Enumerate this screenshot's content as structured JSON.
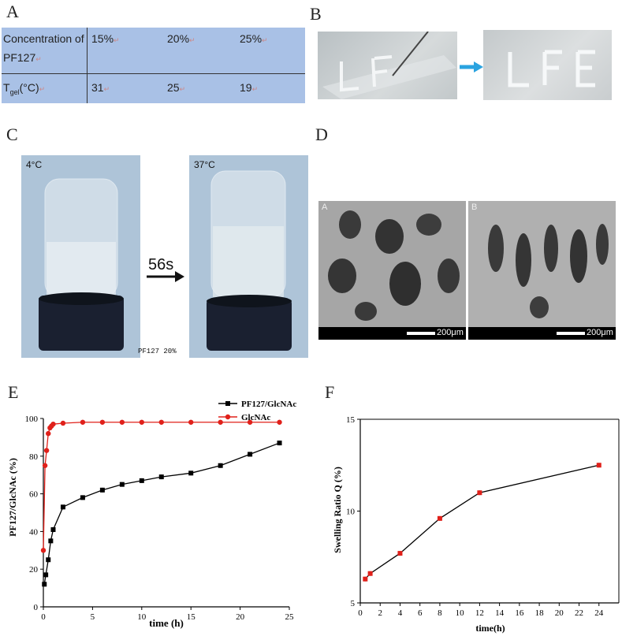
{
  "panels": {
    "A": "A",
    "B": "B",
    "C": "C",
    "D": "D",
    "E": "E",
    "F": "F"
  },
  "table_a": {
    "header": "Concentration of PF127",
    "header_l1": "Concentration",
    "header_of": "of",
    "header_l2": "PF127",
    "row_label_main": "T",
    "row_label_sub": "gel",
    "row_label_rest": "(°C)",
    "concentrations": [
      "15%",
      "20%",
      "25%"
    ],
    "tgel": [
      "31",
      "25",
      "19"
    ]
  },
  "photo_c": {
    "left_label": "4°C",
    "right_label": "37°C",
    "arrow_label": "56s",
    "caption": "PF127 20%"
  },
  "photo_d": {
    "left_tag": "A",
    "right_tag": "B",
    "scale_left": "200μm",
    "scale_right": "200μm"
  },
  "chart_data": [
    {
      "type": "line",
      "xlabel": "time (h)",
      "ylabel": "PF127/GlcNAc (%)",
      "xlim": [
        0,
        25
      ],
      "ylim": [
        0,
        100
      ],
      "xticks": [
        0,
        5,
        10,
        15,
        20,
        25
      ],
      "yticks": [
        0,
        20,
        40,
        60,
        80,
        100
      ],
      "legend_position": "top-right",
      "series": [
        {
          "name": "PF127/GlcNAc",
          "color": "#000000",
          "marker": "square",
          "x": [
            0.1,
            0.25,
            0.5,
            0.75,
            1,
            2,
            4,
            6,
            8,
            10,
            12,
            15,
            18,
            21,
            24
          ],
          "y": [
            12,
            17,
            25,
            35,
            41,
            53,
            58,
            62,
            65,
            67,
            69,
            71,
            75,
            81,
            87
          ]
        },
        {
          "name": "GlcNAc",
          "color": "#e0201a",
          "marker": "circle",
          "x": [
            0,
            0.17,
            0.33,
            0.5,
            0.67,
            0.83,
            1,
            2,
            4,
            6,
            8,
            10,
            12,
            15,
            18,
            21,
            24
          ],
          "y": [
            30,
            75,
            83,
            92,
            95,
            96,
            97,
            97.5,
            98,
            98,
            98,
            98,
            98,
            98,
            98,
            98,
            98
          ]
        }
      ]
    },
    {
      "type": "line",
      "xlabel": "time(h)",
      "ylabel": "Swelling Ratio Q (%)",
      "xlim": [
        0,
        26
      ],
      "ylim": [
        5,
        15
      ],
      "xticks": [
        0,
        2,
        4,
        6,
        8,
        10,
        12,
        14,
        16,
        18,
        20,
        22,
        24
      ],
      "yticks": [
        5,
        10,
        15
      ],
      "series": [
        {
          "color": "#000000",
          "marker_color": "#e0201a",
          "marker": "square",
          "x": [
            0.5,
            1,
            4,
            8,
            12,
            24
          ],
          "y": [
            6.3,
            6.6,
            7.7,
            9.6,
            11.0,
            12.5
          ]
        }
      ]
    }
  ]
}
